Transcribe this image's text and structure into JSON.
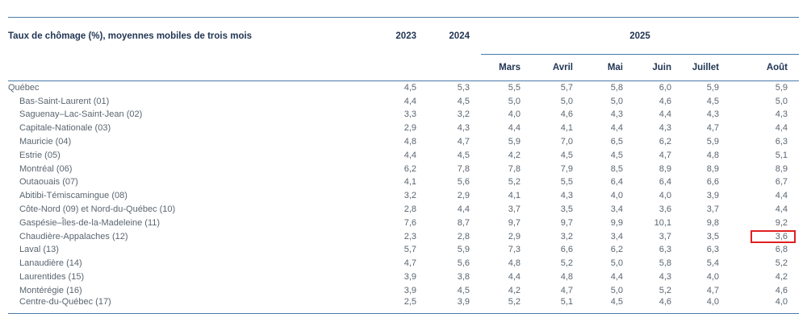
{
  "colors": {
    "rule_line": "#4a7aa9",
    "header_text": "#223654",
    "body_text": "#5a6570",
    "highlight_border": "#e02020",
    "background": "#ffffff"
  },
  "chart_data": {
    "type": "table",
    "title": "Taux de chômage (%), moyennes mobiles de trois mois",
    "year_columns": [
      "2023",
      "2024"
    ],
    "year_group_label": "2025",
    "month_columns": [
      "Mars",
      "Avril",
      "Mai",
      "Juin",
      "Juillet",
      "Août"
    ],
    "rows": [
      {
        "region": "Québec",
        "indent": false,
        "values": [
          "4,5",
          "5,3",
          "5,5",
          "5,7",
          "5,8",
          "6,0",
          "5,9",
          "5,9"
        ]
      },
      {
        "region": "Bas-Saint-Laurent (01)",
        "indent": true,
        "values": [
          "4,4",
          "4,5",
          "5,0",
          "5,0",
          "5,0",
          "4,6",
          "4,5",
          "5,0"
        ]
      },
      {
        "region": "Saguenay–Lac-Saint-Jean (02)",
        "indent": true,
        "values": [
          "3,3",
          "3,2",
          "4,0",
          "4,6",
          "4,3",
          "4,4",
          "4,3",
          "4,3"
        ]
      },
      {
        "region": "Capitale-Nationale (03)",
        "indent": true,
        "values": [
          "2,9",
          "4,3",
          "4,4",
          "4,1",
          "4,4",
          "4,3",
          "4,7",
          "4,4"
        ]
      },
      {
        "region": "Mauricie (04)",
        "indent": true,
        "values": [
          "4,8",
          "4,7",
          "5,9",
          "7,0",
          "6,5",
          "6,2",
          "5,9",
          "6,3"
        ]
      },
      {
        "region": "Estrie (05)",
        "indent": true,
        "values": [
          "4,4",
          "4,5",
          "4,2",
          "4,5",
          "4,5",
          "4,7",
          "4,8",
          "5,1"
        ]
      },
      {
        "region": "Montréal (06)",
        "indent": true,
        "values": [
          "6,2",
          "7,8",
          "7,8",
          "7,9",
          "8,5",
          "8,9",
          "8,9",
          "8,9"
        ]
      },
      {
        "region": "Outaouais (07)",
        "indent": true,
        "values": [
          "4,1",
          "5,6",
          "5,2",
          "5,5",
          "6,4",
          "6,4",
          "6,6",
          "6,7"
        ]
      },
      {
        "region": "Abitibi-Témiscamingue (08)",
        "indent": true,
        "values": [
          "3,2",
          "2,9",
          "4,1",
          "4,3",
          "4,0",
          "4,0",
          "3,9",
          "4,4"
        ]
      },
      {
        "region": "Côte-Nord (09) et Nord-du-Québec (10)",
        "indent": true,
        "values": [
          "2,8",
          "4,4",
          "3,7",
          "3,5",
          "3,4",
          "3,6",
          "3,7",
          "4,4"
        ]
      },
      {
        "region": "Gaspésie–Îles-de-la-Madeleine (11)",
        "indent": true,
        "values": [
          "7,6",
          "8,7",
          "9,7",
          "9,7",
          "9,9",
          "10,1",
          "9,8",
          "9,2"
        ]
      },
      {
        "region": "Chaudière-Appalaches (12)",
        "indent": true,
        "values": [
          "2,3",
          "2,8",
          "2,9",
          "3,2",
          "3,4",
          "3,7",
          "3,5",
          "3,6"
        ]
      },
      {
        "region": "Laval (13)",
        "indent": true,
        "values": [
          "5,7",
          "5,9",
          "7,3",
          "6,6",
          "6,2",
          "6,3",
          "6,3",
          "6,8"
        ]
      },
      {
        "region": "Lanaudière (14)",
        "indent": true,
        "values": [
          "4,7",
          "5,6",
          "4,8",
          "5,2",
          "5,0",
          "5,8",
          "5,4",
          "5,2"
        ]
      },
      {
        "region": "Laurentides (15)",
        "indent": true,
        "values": [
          "3,9",
          "3,8",
          "4,4",
          "4,8",
          "4,4",
          "4,3",
          "4,0",
          "4,2"
        ]
      },
      {
        "region": "Montérégie (16)",
        "indent": true,
        "values": [
          "3,9",
          "4,5",
          "4,2",
          "4,7",
          "5,0",
          "5,2",
          "4,7",
          "4,6"
        ]
      },
      {
        "region": "Centre-du-Québec (17)",
        "indent": true,
        "values": [
          "2,5",
          "3,9",
          "5,2",
          "5,1",
          "4,5",
          "4,6",
          "4,0",
          "4,0"
        ]
      }
    ],
    "highlight": {
      "row_index": 11,
      "value_index": 7,
      "region": "Chaudière-Appalaches (12)",
      "column": "Août",
      "value": "3,6"
    }
  }
}
